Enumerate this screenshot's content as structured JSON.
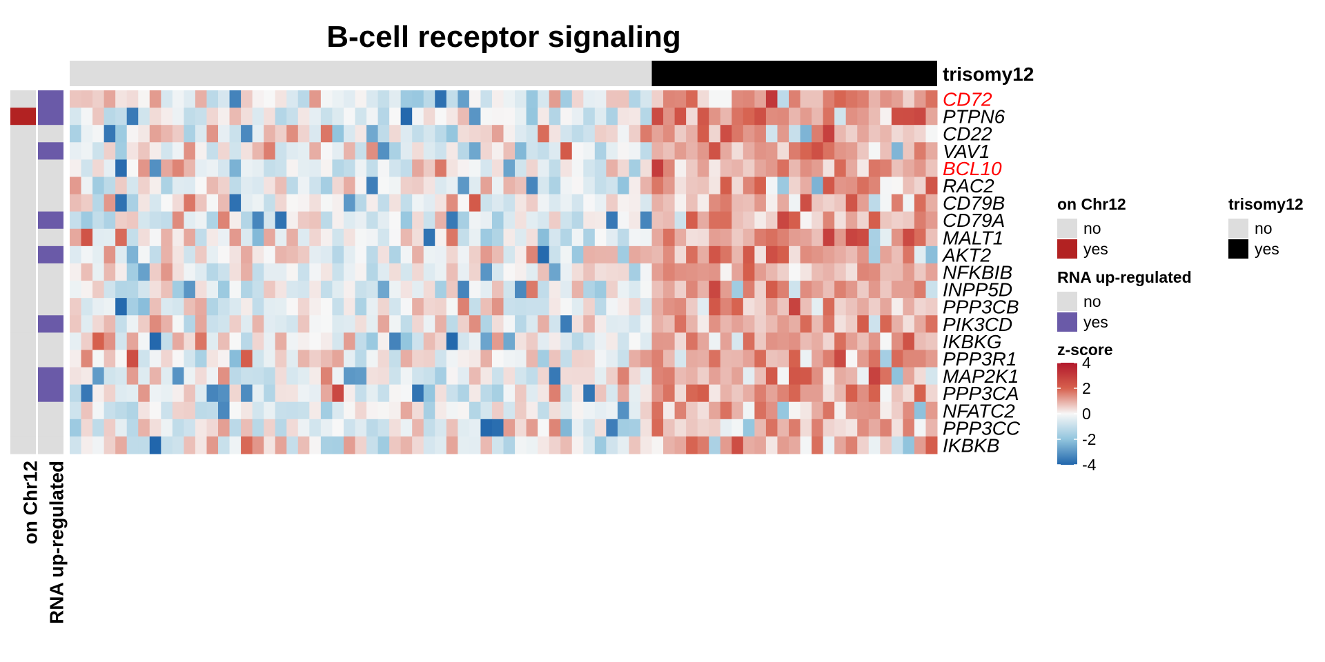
{
  "chart_data": {
    "type": "heatmap",
    "title": "B-cell receptor signaling",
    "genes": [
      "CD72",
      "PTPN6",
      "CD22",
      "VAV1",
      "BCL10",
      "RAC2",
      "CD79B",
      "CD79A",
      "MALT1",
      "AKT2",
      "NFKBIB",
      "INPP5D",
      "PPP3CB",
      "PIK3CD",
      "IKBKG",
      "PPP3R1",
      "MAP2K1",
      "PPP3CA",
      "NFATC2",
      "PPP3CC",
      "IKBKB"
    ],
    "highlighted_genes": [
      "CD72",
      "BCL10"
    ],
    "highlight_color": "#ff0000",
    "sample_count": 76,
    "trisomy12_count": 25,
    "column_annotation": {
      "name": "trisomy12",
      "values": "first 51 samples no, last 25 samples yes"
    },
    "row_annotations": [
      {
        "name": "on Chr12",
        "yes_genes": [
          "PTPN6"
        ]
      },
      {
        "name": "RNA up-regulated",
        "yes_genes": [
          "CD72",
          "PTPN6",
          "VAV1",
          "CD79A",
          "AKT2",
          "PIK3CD",
          "MAP2K1",
          "PPP3CA"
        ]
      }
    ],
    "z_range": [
      -4,
      4
    ],
    "colorbar_ticks": [
      4,
      2,
      0,
      -2,
      -4
    ],
    "colors": {
      "high": "#b2182b",
      "mid_high": "#d6604d",
      "mid": "#f7f7f7",
      "mid_low": "#92c5de",
      "low": "#2166ac",
      "annotation_no": "#dddddd",
      "chr12_yes": "#b22222",
      "rna_yes": "#6a5aa8",
      "trisomy_yes": "#000000"
    },
    "legends": {
      "chr12": {
        "title": "on Chr12",
        "no": "no",
        "yes": "yes"
      },
      "trisomy": {
        "title": "trisomy12",
        "no": "no",
        "yes": "yes"
      },
      "rna": {
        "title": "RNA up-regulated",
        "no": "no",
        "yes": "yes"
      },
      "zscore": {
        "title": "z-score"
      }
    },
    "values_note": "Z-score matrix of 21 genes × 76 samples: trisomy12 samples predominantly positive (red, up to ~4), remaining samples mixed around 0 (ranging to ~-4)."
  }
}
